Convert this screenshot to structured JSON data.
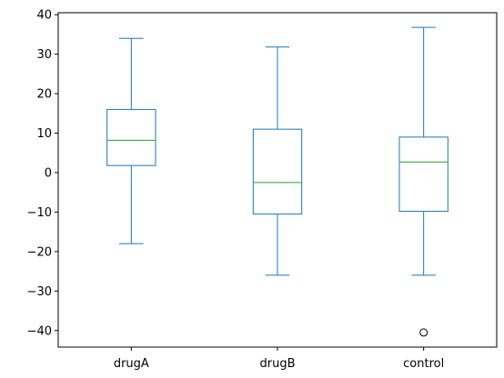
{
  "chart_data": {
    "type": "box",
    "categories": [
      "drugA",
      "drugB",
      "control"
    ],
    "series": [
      {
        "category": "drugA",
        "whisker_low": -18,
        "q1": 1.8,
        "median": 8.2,
        "q3": 16,
        "whisker_high": 34,
        "outliers": []
      },
      {
        "category": "drugB",
        "whisker_low": -26,
        "q1": -10.5,
        "median": -2.5,
        "q3": 11,
        "whisker_high": 31.8,
        "outliers": []
      },
      {
        "category": "control",
        "whisker_low": -26,
        "q1": -9.8,
        "median": 2.7,
        "q3": 9,
        "whisker_high": 36.8,
        "outliers": [
          -40.5
        ]
      }
    ],
    "yticks": [
      -40,
      -30,
      -20,
      -10,
      0,
      10,
      20,
      30,
      40
    ],
    "ytick_labels": [
      "−40",
      "−30",
      "−20",
      "−10",
      "0",
      "10",
      "20",
      "30",
      "40"
    ],
    "ylim": [
      -44.2,
      40.5
    ],
    "title": "",
    "xlabel": "",
    "ylabel": "",
    "grid": false,
    "colors": {
      "box": "#1f77b4",
      "median": "#2ca02c",
      "outlier": "#000000",
      "axes": "#000000"
    }
  }
}
